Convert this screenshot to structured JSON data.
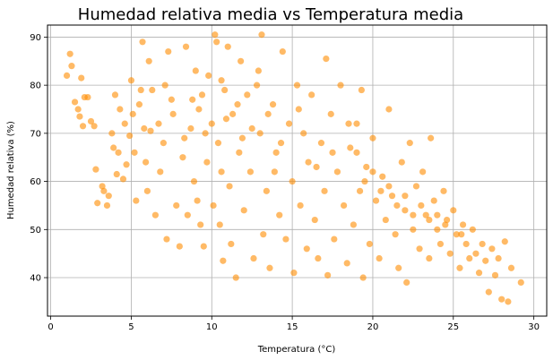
{
  "chart_data": {
    "type": "scatter",
    "title": "Humedad relativa media vs Temperatura media",
    "xlabel": "Temperatura (°C)",
    "ylabel": "Humedad relativa (%)",
    "xlim": [
      -0.2,
      30.8
    ],
    "ylim": [
      32,
      92.5
    ],
    "xticks": [
      0,
      5,
      10,
      15,
      20,
      25,
      30
    ],
    "yticks": [
      40,
      50,
      60,
      70,
      80,
      90
    ],
    "grid": true,
    "marker_color": "#ff8c00",
    "marker_alpha": 0.6,
    "points": [
      [
        1.0,
        82
      ],
      [
        1.2,
        86.5
      ],
      [
        1.3,
        84
      ],
      [
        1.5,
        76.5
      ],
      [
        1.7,
        75
      ],
      [
        1.8,
        73.5
      ],
      [
        2.0,
        71.5
      ],
      [
        1.9,
        81.5
      ],
      [
        2.1,
        77.5
      ],
      [
        2.3,
        77.5
      ],
      [
        2.5,
        72.5
      ],
      [
        2.7,
        71.5
      ],
      [
        2.8,
        62.5
      ],
      [
        2.9,
        55.5
      ],
      [
        3.2,
        59
      ],
      [
        3.3,
        58
      ],
      [
        3.5,
        55
      ],
      [
        3.6,
        57
      ],
      [
        3.8,
        70
      ],
      [
        3.9,
        67
      ],
      [
        4.0,
        78
      ],
      [
        4.1,
        61.5
      ],
      [
        4.2,
        66
      ],
      [
        4.3,
        75
      ],
      [
        4.5,
        60.5
      ],
      [
        4.6,
        72
      ],
      [
        4.7,
        63.5
      ],
      [
        4.9,
        69.5
      ],
      [
        5.0,
        81
      ],
      [
        5.1,
        74
      ],
      [
        5.2,
        66
      ],
      [
        5.3,
        56
      ],
      [
        5.5,
        76
      ],
      [
        5.6,
        79
      ],
      [
        5.7,
        89
      ],
      [
        5.8,
        71
      ],
      [
        5.9,
        64
      ],
      [
        6.0,
        58
      ],
      [
        6.1,
        85
      ],
      [
        6.3,
        79
      ],
      [
        6.5,
        53
      ],
      [
        6.7,
        72
      ],
      [
        6.8,
        62
      ],
      [
        7.0,
        68
      ],
      [
        7.2,
        48
      ],
      [
        7.3,
        87
      ],
      [
        7.5,
        77
      ],
      [
        7.8,
        55
      ],
      [
        8.0,
        46.5
      ],
      [
        8.2,
        65
      ],
      [
        8.4,
        88
      ],
      [
        8.5,
        53
      ],
      [
        8.7,
        71
      ],
      [
        8.9,
        60
      ],
      [
        9.0,
        83
      ],
      [
        9.1,
        56
      ],
      [
        9.2,
        75
      ],
      [
        9.3,
        51
      ],
      [
        9.5,
        46.5
      ],
      [
        9.7,
        64
      ],
      [
        9.8,
        82
      ],
      [
        10.0,
        72
      ],
      [
        10.1,
        55
      ],
      [
        10.2,
        90.5
      ],
      [
        10.3,
        89
      ],
      [
        10.4,
        68
      ],
      [
        10.5,
        51
      ],
      [
        10.6,
        62
      ],
      [
        10.7,
        43.5
      ],
      [
        10.8,
        79
      ],
      [
        11.0,
        88
      ],
      [
        11.1,
        59
      ],
      [
        11.2,
        47
      ],
      [
        11.3,
        74
      ],
      [
        11.5,
        40
      ],
      [
        11.7,
        66
      ],
      [
        11.8,
        85
      ],
      [
        12.0,
        54
      ],
      [
        12.2,
        78
      ],
      [
        12.4,
        62
      ],
      [
        12.6,
        44
      ],
      [
        12.8,
        80
      ],
      [
        13.0,
        70
      ],
      [
        13.1,
        90.5
      ],
      [
        13.2,
        49
      ],
      [
        13.4,
        58
      ],
      [
        13.6,
        42
      ],
      [
        13.8,
        76
      ],
      [
        14.0,
        66
      ],
      [
        14.2,
        53
      ],
      [
        14.4,
        87
      ],
      [
        14.6,
        48
      ],
      [
        14.8,
        72
      ],
      [
        15.0,
        60
      ],
      [
        15.1,
        41
      ],
      [
        15.3,
        80
      ],
      [
        15.5,
        55
      ],
      [
        15.7,
        70
      ],
      [
        15.9,
        46
      ],
      [
        16.0,
        64
      ],
      [
        16.2,
        78
      ],
      [
        16.4,
        52
      ],
      [
        16.6,
        44
      ],
      [
        16.8,
        68
      ],
      [
        17.0,
        58
      ],
      [
        17.1,
        85.5
      ],
      [
        17.2,
        40.5
      ],
      [
        17.4,
        74
      ],
      [
        17.6,
        48
      ],
      [
        17.8,
        62
      ],
      [
        18.0,
        80
      ],
      [
        18.2,
        55
      ],
      [
        18.4,
        43
      ],
      [
        18.6,
        67
      ],
      [
        18.8,
        51
      ],
      [
        19.0,
        72
      ],
      [
        19.2,
        58
      ],
      [
        19.3,
        79
      ],
      [
        19.4,
        40
      ],
      [
        19.6,
        63
      ],
      [
        19.8,
        47
      ],
      [
        20.0,
        69
      ],
      [
        20.2,
        56
      ],
      [
        20.4,
        44
      ],
      [
        20.6,
        61
      ],
      [
        20.8,
        52
      ],
      [
        21.0,
        75
      ],
      [
        21.2,
        57
      ],
      [
        21.4,
        49
      ],
      [
        21.6,
        42
      ],
      [
        21.8,
        64
      ],
      [
        22.0,
        54
      ],
      [
        22.1,
        39
      ],
      [
        22.3,
        68
      ],
      [
        22.5,
        50
      ],
      [
        22.7,
        59
      ],
      [
        22.9,
        46
      ],
      [
        23.1,
        62
      ],
      [
        23.3,
        53
      ],
      [
        23.5,
        44
      ],
      [
        23.6,
        69
      ],
      [
        23.8,
        56
      ],
      [
        24.0,
        50
      ],
      [
        24.2,
        47
      ],
      [
        24.4,
        58
      ],
      [
        24.6,
        52
      ],
      [
        24.8,
        45
      ],
      [
        25.0,
        54
      ],
      [
        25.2,
        49
      ],
      [
        25.4,
        42
      ],
      [
        25.6,
        51
      ],
      [
        25.8,
        47
      ],
      [
        26.0,
        44
      ],
      [
        26.2,
        50
      ],
      [
        26.4,
        45
      ],
      [
        26.6,
        41
      ],
      [
        26.8,
        47
      ],
      [
        27.0,
        43.5
      ],
      [
        27.2,
        37
      ],
      [
        27.4,
        46
      ],
      [
        27.6,
        40.5
      ],
      [
        27.8,
        44
      ],
      [
        28.0,
        35.5
      ],
      [
        28.2,
        47.5
      ],
      [
        28.4,
        35
      ],
      [
        28.6,
        42
      ],
      [
        29.2,
        39
      ],
      [
        6.2,
        70.5
      ],
      [
        7.6,
        74
      ],
      [
        8.8,
        77
      ],
      [
        9.6,
        70
      ],
      [
        10.9,
        73
      ],
      [
        11.6,
        76
      ],
      [
        12.5,
        71
      ],
      [
        13.5,
        74
      ],
      [
        14.3,
        68
      ],
      [
        7.1,
        80
      ],
      [
        8.3,
        69
      ],
      [
        9.4,
        78
      ],
      [
        10.6,
        81
      ],
      [
        11.9,
        69
      ],
      [
        12.9,
        83
      ],
      [
        13.9,
        62
      ],
      [
        15.4,
        75
      ],
      [
        16.5,
        63
      ],
      [
        17.5,
        66
      ],
      [
        18.5,
        72
      ],
      [
        19.5,
        60
      ],
      [
        20.5,
        58
      ],
      [
        21.5,
        55
      ],
      [
        22.5,
        53
      ],
      [
        23.5,
        52
      ],
      [
        24.5,
        51
      ],
      [
        25.5,
        49
      ],
      [
        19.0,
        66
      ],
      [
        20.0,
        62
      ],
      [
        21.0,
        59
      ],
      [
        22.0,
        57
      ],
      [
        23.0,
        55
      ],
      [
        24.0,
        53
      ]
    ]
  }
}
